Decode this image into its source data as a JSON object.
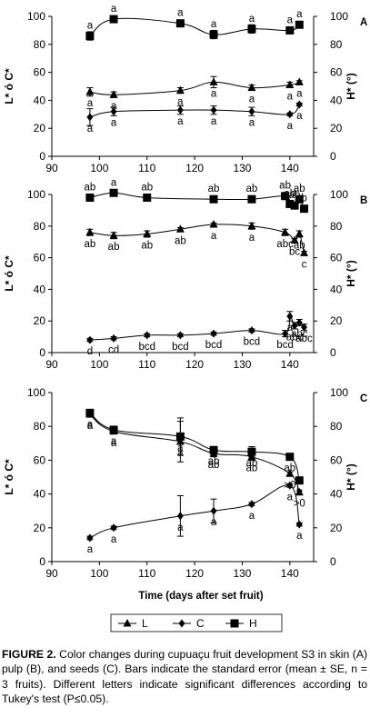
{
  "figure": {
    "shared_xlabel": "Time (days after set fruit)",
    "legend": [
      "L",
      "C",
      "H"
    ],
    "caption_head": "FIGURE 2.",
    "caption_body": "Color changes during cupuaçu fruit development S3 in skin (A) pulp (B), and seeds (C). Bars indicate the standard error (mean ± SE, n = 3 fruits). Different letters indicate significant differences according to Tukey's test (P≤0.05)."
  },
  "chart_data": [
    {
      "type": "line",
      "panel": "A",
      "ylabel": "L* ó C*",
      "y2label": "H* (°)",
      "xlim": [
        90,
        145
      ],
      "ylim": [
        0,
        100
      ],
      "y2lim": [
        0,
        100
      ],
      "xticks": [
        90,
        100,
        110,
        120,
        130,
        140
      ],
      "yticks": [
        0,
        20,
        40,
        60,
        80,
        100
      ],
      "y2ticks": [
        0,
        20,
        40,
        60,
        80,
        100
      ],
      "series": [
        {
          "name": "L",
          "marker": "triangle",
          "x": [
            98,
            103,
            117,
            124,
            132,
            140,
            142
          ],
          "y": [
            46,
            44,
            47,
            53,
            49,
            51,
            53
          ],
          "err": [
            3,
            2,
            2,
            4,
            2,
            2,
            1
          ],
          "labels": [
            "a",
            "a",
            "a",
            "a",
            "a",
            "a",
            "a"
          ]
        },
        {
          "name": "C",
          "marker": "diamond",
          "x": [
            98,
            103,
            117,
            124,
            132,
            140,
            142
          ],
          "y": [
            28,
            32,
            33,
            33,
            32,
            30,
            37
          ],
          "err": [
            6,
            3,
            3,
            3,
            3,
            1,
            1
          ],
          "labels": [
            "a",
            "a",
            "a",
            "a",
            "a",
            "a",
            "a"
          ]
        },
        {
          "name": "H",
          "marker": "square",
          "x": [
            98,
            103,
            117,
            124,
            132,
            140,
            142
          ],
          "y": [
            86,
            98,
            95,
            87,
            91,
            90,
            94
          ],
          "err": [
            3,
            1,
            1,
            3,
            3,
            1,
            1
          ],
          "labels": [
            "a",
            "a",
            "a",
            "a",
            "a",
            "a",
            "a"
          ]
        }
      ]
    },
    {
      "type": "line",
      "panel": "B",
      "ylabel": "L* ó C*",
      "y2label": "H* (°)",
      "xlim": [
        90,
        145
      ],
      "ylim": [
        0,
        100
      ],
      "y2lim": [
        0,
        100
      ],
      "xticks": [
        90,
        100,
        110,
        120,
        130,
        140
      ],
      "yticks": [
        0,
        20,
        40,
        60,
        80,
        100
      ],
      "y2ticks": [
        0,
        20,
        40,
        60,
        80,
        100
      ],
      "series": [
        {
          "name": "L",
          "marker": "triangle",
          "x": [
            98,
            103,
            110,
            117,
            124,
            132,
            139,
            141,
            142,
            143
          ],
          "y": [
            76,
            74,
            75,
            78,
            81,
            80,
            76,
            71,
            75,
            63
          ],
          "err": [
            2,
            2,
            2,
            1,
            1,
            2,
            2,
            1,
            2,
            1
          ],
          "labels": [
            "ab",
            "ab",
            "ab",
            "ab",
            "a",
            "a",
            "abc",
            "bc",
            "ab",
            "c"
          ]
        },
        {
          "name": "C",
          "marker": "diamond",
          "x": [
            98,
            103,
            110,
            117,
            124,
            132,
            139,
            140,
            141,
            142,
            143
          ],
          "y": [
            8,
            9,
            11,
            11,
            12,
            14,
            12,
            23,
            17,
            19,
            16
          ],
          "err": [
            1,
            1,
            1,
            1,
            1,
            1,
            2,
            3,
            2,
            2,
            2
          ],
          "labels": [
            "d",
            "cd",
            "bcd",
            "bcd",
            "bcd",
            "bcd",
            "bcd",
            "a",
            "abc",
            "abc",
            "abc"
          ]
        },
        {
          "name": "H",
          "marker": "square",
          "x": [
            98,
            103,
            110,
            124,
            132,
            139,
            140,
            141,
            142,
            143
          ],
          "y": [
            98,
            101,
            98,
            97,
            97,
            99,
            94,
            93,
            97,
            91
          ],
          "err": [
            1,
            1,
            1,
            1,
            1,
            1,
            1,
            1,
            1,
            1
          ],
          "labels": [
            "ab",
            "a",
            "ab",
            "ab",
            "ab",
            "ab",
            "ab",
            "ab",
            "ab",
            "b"
          ]
        }
      ]
    },
    {
      "type": "line",
      "panel": "C",
      "ylabel": "L* ó C*",
      "y2label": "H* (°)",
      "xlabel": "Time (days after set fruit)",
      "xlim": [
        90,
        145
      ],
      "ylim": [
        0,
        100
      ],
      "y2lim": [
        0,
        100
      ],
      "xticks": [
        90,
        100,
        110,
        120,
        130,
        140
      ],
      "yticks": [
        0,
        20,
        40,
        60,
        80,
        100
      ],
      "y2ticks": [
        0,
        20,
        40,
        60,
        80,
        100
      ],
      "series": [
        {
          "name": "L",
          "marker": "triangle",
          "x": [
            98,
            103,
            117,
            124,
            132,
            140,
            142
          ],
          "y": [
            87,
            77,
            71,
            64,
            62,
            52,
            41
          ],
          "err": [
            1,
            1,
            12,
            2,
            2,
            1,
            1
          ],
          "labels": [
            "a",
            "a",
            "a",
            "ab",
            "ab",
            ">0",
            ">0"
          ]
        },
        {
          "name": "C",
          "marker": "diamond",
          "x": [
            98,
            103,
            117,
            124,
            132,
            140,
            142
          ],
          "y": [
            14,
            20,
            27,
            30,
            34,
            45,
            22
          ],
          "err": [
            1,
            1,
            12,
            7,
            1,
            1,
            1
          ],
          "labels": [
            "a",
            "a",
            "a",
            "a",
            "a",
            "a",
            "a"
          ]
        },
        {
          "name": "H",
          "marker": "square",
          "x": [
            98,
            103,
            117,
            124,
            132,
            140,
            142
          ],
          "y": [
            88,
            78,
            74,
            66,
            65,
            62,
            48
          ],
          "err": [
            1,
            1,
            11,
            2,
            3,
            1,
            1
          ],
          "labels": [
            "a",
            "a",
            "a",
            "ab",
            "ab",
            "ab",
            "b"
          ]
        }
      ]
    }
  ]
}
